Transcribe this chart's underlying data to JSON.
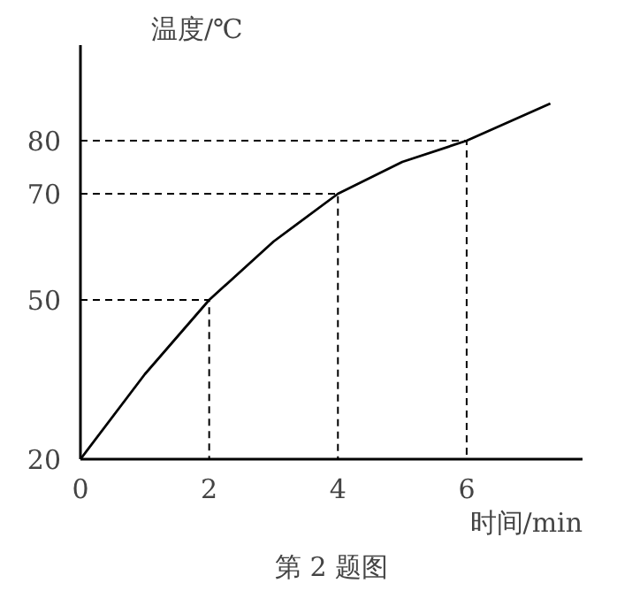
{
  "chart_data": {
    "type": "line",
    "xlabel": "时间/min",
    "ylabel": "温度/℃",
    "annotations": [
      "第 2 题图"
    ],
    "x": [
      0,
      1,
      2,
      3,
      4,
      5,
      6,
      7.3
    ],
    "series": [
      {
        "color": "#000000",
        "values": [
          20,
          36,
          50,
          61,
          70,
          76,
          80,
          87
        ]
      },
      {
        "type": "line",
        "x": [
          0,
          2,
          2
        ],
        "values": [
          50,
          50,
          20
        ],
        "color": "#000000",
        "line_style": "dashed"
      },
      {
        "type": "line",
        "x": [
          0,
          4,
          4
        ],
        "values": [
          70,
          70,
          20
        ],
        "color": "#000000",
        "line_style": "dashed"
      },
      {
        "type": "line",
        "x": [
          0,
          6,
          6
        ],
        "values": [
          80,
          80,
          20
        ],
        "color": "#000000",
        "line_style": "dashed"
      }
    ],
    "xlim": [
      0,
      7.8
    ],
    "ylim": [
      20,
      98
    ],
    "xticks": [
      0,
      2,
      4,
      6
    ],
    "yticks": [
      20,
      50,
      70,
      80
    ],
    "grid": false
  }
}
